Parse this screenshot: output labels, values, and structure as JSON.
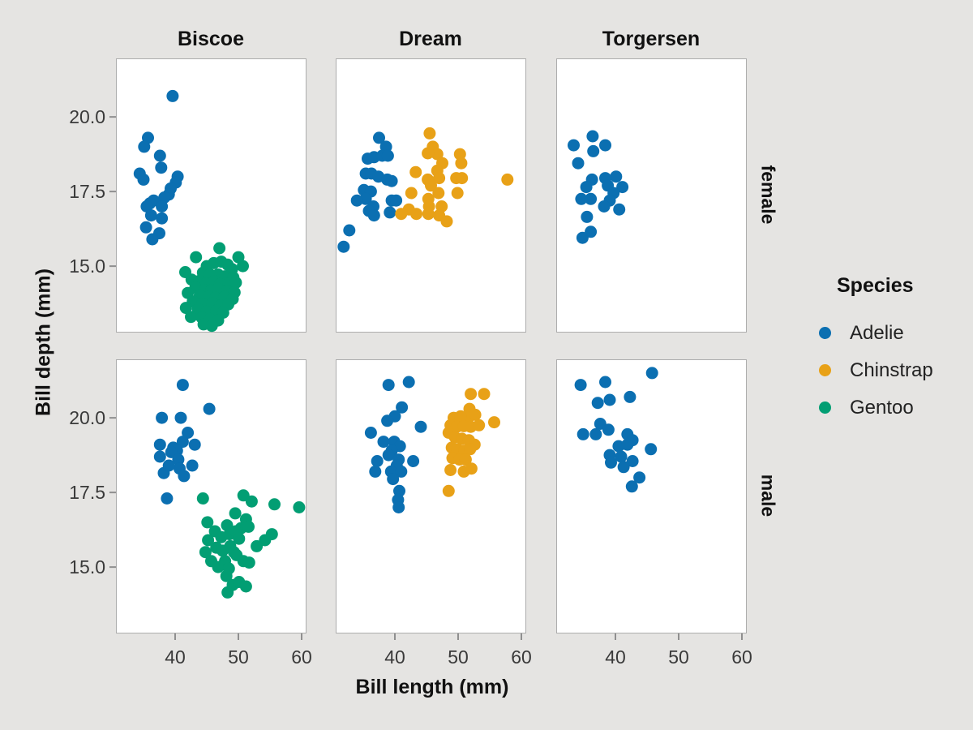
{
  "figure": {
    "kind": "faceted scatter plot",
    "background": "#e5e4e2",
    "panel_fill": "#ffffff",
    "panel_border": "#adadad",
    "tick_color": "#8f8f8f"
  },
  "axes": {
    "x_label": "Bill length (mm)",
    "y_label": "Bill depth (mm)",
    "x_ticks": [
      40,
      50,
      60
    ],
    "y_ticks": [
      20.0,
      17.5,
      15.0
    ],
    "y_tick_labels": [
      "20.0",
      "17.5",
      "15.0"
    ],
    "x_tick_labels": [
      "40",
      "50",
      "60"
    ],
    "xlim": [
      30.6,
      60.6
    ],
    "ylim": [
      12.8,
      21.96
    ]
  },
  "facets": {
    "cols": [
      "Biscoe",
      "Dream",
      "Torgersen"
    ],
    "rows": [
      "female",
      "male"
    ]
  },
  "legend": {
    "title": "Species",
    "items": [
      {
        "label": "Adelie",
        "color": "#0b6fb1"
      },
      {
        "label": "Chinstrap",
        "color": "#e8a117"
      },
      {
        "label": "Gentoo",
        "color": "#029e73"
      }
    ]
  },
  "chart_data": {
    "type": "scatter",
    "title": "",
    "xlabel": "Bill length (mm)",
    "ylabel": "Bill depth (mm)",
    "facet_col": "island",
    "facet_row": "sex",
    "grid": false,
    "legend_position": "right",
    "series": [
      {
        "island": "Biscoe",
        "sex": "female",
        "species": "Adelie",
        "points": [
          [
            39.6,
            20.7
          ],
          [
            35.7,
            19.3
          ],
          [
            35.1,
            19.0
          ],
          [
            37.6,
            18.7
          ],
          [
            37.8,
            18.3
          ],
          [
            34.4,
            18.1
          ],
          [
            40.4,
            18.0
          ],
          [
            35.0,
            17.9
          ],
          [
            40.1,
            17.8
          ],
          [
            39.3,
            17.6
          ],
          [
            39.0,
            17.4
          ],
          [
            38.3,
            17.3
          ],
          [
            36.6,
            17.2
          ],
          [
            36.0,
            17.1
          ],
          [
            35.5,
            17.0
          ],
          [
            37.9,
            17.0
          ],
          [
            36.2,
            16.7
          ],
          [
            37.9,
            16.6
          ],
          [
            35.4,
            16.3
          ],
          [
            37.5,
            16.1
          ],
          [
            36.4,
            15.9
          ]
        ]
      },
      {
        "island": "Biscoe",
        "sex": "female",
        "species": "Gentoo",
        "points": [
          [
            47.0,
            15.6
          ],
          [
            43.3,
            15.3
          ],
          [
            50.0,
            15.3
          ],
          [
            46.1,
            15.1
          ],
          [
            47.3,
            15.15
          ],
          [
            48.3,
            15.05
          ],
          [
            45.0,
            15.0
          ],
          [
            50.7,
            15.0
          ],
          [
            41.6,
            14.8
          ],
          [
            49.0,
            14.9
          ],
          [
            44.4,
            14.78
          ],
          [
            45.5,
            14.72
          ],
          [
            46.8,
            14.72
          ],
          [
            47.9,
            14.66
          ],
          [
            49.2,
            14.62
          ],
          [
            42.6,
            14.55
          ],
          [
            43.8,
            14.5
          ],
          [
            44.9,
            14.42
          ],
          [
            46.2,
            14.5
          ],
          [
            47.1,
            14.4
          ],
          [
            48.5,
            14.42
          ],
          [
            49.6,
            14.45
          ],
          [
            43.2,
            14.28
          ],
          [
            44.6,
            14.2
          ],
          [
            45.7,
            14.18
          ],
          [
            46.8,
            14.24
          ],
          [
            48.2,
            14.16
          ],
          [
            49.4,
            14.12
          ],
          [
            42.0,
            14.1
          ],
          [
            43.9,
            14.02
          ],
          [
            45.3,
            13.98
          ],
          [
            46.4,
            13.94
          ],
          [
            47.8,
            13.97
          ],
          [
            49.1,
            13.9
          ],
          [
            42.8,
            13.82
          ],
          [
            44.3,
            13.74
          ],
          [
            45.9,
            13.76
          ],
          [
            47.2,
            13.68
          ],
          [
            48.4,
            13.72
          ],
          [
            41.7,
            13.6
          ],
          [
            43.6,
            13.56
          ],
          [
            45.0,
            13.48
          ],
          [
            46.5,
            13.5
          ],
          [
            47.6,
            13.44
          ],
          [
            42.5,
            13.3
          ],
          [
            44.2,
            13.28
          ],
          [
            45.5,
            13.22
          ],
          [
            46.8,
            13.18
          ],
          [
            44.5,
            13.05
          ],
          [
            45.8,
            13.0
          ]
        ]
      },
      {
        "island": "Biscoe",
        "sex": "male",
        "species": "Adelie",
        "points": [
          [
            41.2,
            21.1
          ],
          [
            45.4,
            20.3
          ],
          [
            37.9,
            20.0
          ],
          [
            40.9,
            20.0
          ],
          [
            42.0,
            19.5
          ],
          [
            37.6,
            19.1
          ],
          [
            41.2,
            19.2
          ],
          [
            39.7,
            19.0
          ],
          [
            43.1,
            19.1
          ],
          [
            40.3,
            18.9
          ],
          [
            39.4,
            18.85
          ],
          [
            37.6,
            18.7
          ],
          [
            40.5,
            18.6
          ],
          [
            42.7,
            18.4
          ],
          [
            38.2,
            18.15
          ],
          [
            40.7,
            18.3
          ],
          [
            41.4,
            18.05
          ],
          [
            39.0,
            18.4
          ],
          [
            38.7,
            17.3
          ]
        ]
      },
      {
        "island": "Biscoe",
        "sex": "male",
        "species": "Gentoo",
        "points": [
          [
            44.4,
            17.3
          ],
          [
            50.8,
            17.4
          ],
          [
            52.1,
            17.2
          ],
          [
            55.7,
            17.1
          ],
          [
            59.6,
            17.0
          ],
          [
            49.5,
            16.8
          ],
          [
            51.2,
            16.6
          ],
          [
            45.1,
            16.5
          ],
          [
            48.2,
            16.4
          ],
          [
            50.4,
            16.3
          ],
          [
            51.6,
            16.35
          ],
          [
            55.3,
            16.1
          ],
          [
            54.2,
            15.9
          ],
          [
            46.3,
            16.2
          ],
          [
            47.3,
            16.0
          ],
          [
            48.6,
            16.1
          ],
          [
            49.6,
            16.2
          ],
          [
            50.1,
            15.95
          ],
          [
            45.2,
            15.9
          ],
          [
            52.9,
            15.7
          ],
          [
            48.7,
            15.7
          ],
          [
            46.5,
            15.65
          ],
          [
            47.5,
            15.55
          ],
          [
            49.3,
            15.5
          ],
          [
            44.8,
            15.5
          ],
          [
            45.7,
            15.2
          ],
          [
            47.9,
            15.2
          ],
          [
            49.7,
            15.4
          ],
          [
            50.8,
            15.2
          ],
          [
            51.7,
            15.15
          ],
          [
            46.8,
            15.0
          ],
          [
            48.5,
            14.95
          ],
          [
            48.1,
            14.7
          ],
          [
            49.1,
            14.4
          ],
          [
            50.1,
            14.5
          ],
          [
            51.2,
            14.35
          ],
          [
            48.3,
            14.15
          ]
        ]
      },
      {
        "island": "Dream",
        "sex": "female",
        "species": "Adelie",
        "points": [
          [
            37.5,
            19.3
          ],
          [
            38.6,
            19.0
          ],
          [
            35.7,
            18.6
          ],
          [
            36.7,
            18.65
          ],
          [
            38.0,
            18.7
          ],
          [
            38.9,
            18.7
          ],
          [
            35.4,
            18.1
          ],
          [
            36.3,
            18.1
          ],
          [
            37.4,
            18.0
          ],
          [
            38.8,
            17.9
          ],
          [
            39.5,
            17.85
          ],
          [
            35.1,
            17.55
          ],
          [
            36.2,
            17.5
          ],
          [
            35.4,
            17.25
          ],
          [
            34.0,
            17.2
          ],
          [
            39.5,
            17.2
          ],
          [
            40.2,
            17.2
          ],
          [
            36.6,
            17.0
          ],
          [
            39.2,
            16.8
          ],
          [
            35.9,
            16.85
          ],
          [
            36.7,
            16.7
          ],
          [
            32.8,
            16.2
          ],
          [
            31.9,
            15.65
          ]
        ]
      },
      {
        "island": "Dream",
        "sex": "female",
        "species": "Chinstrap",
        "points": [
          [
            45.5,
            19.45
          ],
          [
            46.0,
            19.0
          ],
          [
            46.7,
            18.75
          ],
          [
            45.2,
            18.78
          ],
          [
            47.5,
            18.45
          ],
          [
            50.3,
            18.75
          ],
          [
            50.5,
            18.45
          ],
          [
            43.3,
            18.15
          ],
          [
            46.7,
            18.2
          ],
          [
            47.0,
            17.95
          ],
          [
            45.2,
            17.9
          ],
          [
            49.7,
            17.95
          ],
          [
            50.6,
            17.95
          ],
          [
            57.8,
            17.9
          ],
          [
            45.7,
            17.7
          ],
          [
            42.6,
            17.45
          ],
          [
            45.3,
            17.25
          ],
          [
            46.9,
            17.45
          ],
          [
            49.9,
            17.45
          ],
          [
            45.4,
            17.0
          ],
          [
            47.4,
            17.0
          ],
          [
            42.2,
            16.9
          ],
          [
            41.0,
            16.75
          ],
          [
            43.4,
            16.75
          ],
          [
            45.3,
            16.75
          ],
          [
            47.0,
            16.7
          ],
          [
            48.2,
            16.5
          ]
        ]
      },
      {
        "island": "Dream",
        "sex": "male",
        "species": "Adelie",
        "points": [
          [
            39.0,
            21.1
          ],
          [
            42.2,
            21.2
          ],
          [
            41.1,
            20.35
          ],
          [
            40.0,
            20.05
          ],
          [
            38.8,
            19.9
          ],
          [
            44.1,
            19.7
          ],
          [
            36.2,
            19.5
          ],
          [
            38.2,
            19.2
          ],
          [
            39.9,
            19.2
          ],
          [
            40.8,
            19.05
          ],
          [
            39.5,
            18.9
          ],
          [
            39.0,
            18.75
          ],
          [
            40.6,
            18.6
          ],
          [
            37.2,
            18.55
          ],
          [
            42.9,
            18.55
          ],
          [
            40.3,
            18.4
          ],
          [
            36.9,
            18.2
          ],
          [
            39.4,
            18.2
          ],
          [
            41.0,
            18.2
          ],
          [
            39.7,
            17.95
          ],
          [
            40.7,
            17.55
          ],
          [
            40.5,
            17.25
          ],
          [
            40.6,
            17.0
          ]
        ]
      },
      {
        "island": "Dream",
        "sex": "male",
        "species": "Chinstrap",
        "points": [
          [
            52.0,
            20.8
          ],
          [
            54.1,
            20.8
          ],
          [
            51.8,
            20.3
          ],
          [
            51.6,
            20.0
          ],
          [
            49.3,
            20.0
          ],
          [
            50.4,
            20.05
          ],
          [
            52.7,
            20.1
          ],
          [
            55.7,
            19.85
          ],
          [
            48.8,
            19.75
          ],
          [
            49.8,
            19.7
          ],
          [
            50.9,
            19.72
          ],
          [
            52.0,
            19.7
          ],
          [
            53.3,
            19.75
          ],
          [
            48.5,
            19.5
          ],
          [
            49.5,
            19.35
          ],
          [
            50.6,
            19.3
          ],
          [
            51.7,
            19.25
          ],
          [
            52.6,
            19.1
          ],
          [
            49.0,
            19.0
          ],
          [
            49.9,
            18.95
          ],
          [
            51.0,
            18.9
          ],
          [
            51.9,
            18.95
          ],
          [
            49.1,
            18.65
          ],
          [
            50.2,
            18.6
          ],
          [
            51.2,
            18.6
          ],
          [
            48.8,
            18.25
          ],
          [
            50.9,
            18.2
          ],
          [
            52.1,
            18.3
          ],
          [
            48.5,
            17.55
          ]
        ]
      },
      {
        "island": "Torgersen",
        "sex": "female",
        "species": "Adelie",
        "points": [
          [
            36.4,
            19.35
          ],
          [
            33.4,
            19.05
          ],
          [
            38.4,
            19.05
          ],
          [
            36.5,
            18.85
          ],
          [
            34.1,
            18.45
          ],
          [
            40.1,
            18.0
          ],
          [
            36.3,
            17.9
          ],
          [
            38.4,
            17.95
          ],
          [
            38.8,
            17.7
          ],
          [
            35.4,
            17.65
          ],
          [
            41.1,
            17.65
          ],
          [
            34.6,
            17.25
          ],
          [
            36.1,
            17.25
          ],
          [
            39.7,
            17.45
          ],
          [
            39.1,
            17.2
          ],
          [
            38.2,
            17.0
          ],
          [
            40.6,
            16.9
          ],
          [
            35.5,
            16.65
          ],
          [
            36.1,
            16.15
          ],
          [
            34.8,
            15.95
          ]
        ]
      },
      {
        "island": "Torgersen",
        "sex": "male",
        "species": "Adelie",
        "points": [
          [
            45.8,
            21.5
          ],
          [
            34.5,
            21.1
          ],
          [
            38.4,
            21.2
          ],
          [
            37.2,
            20.5
          ],
          [
            39.1,
            20.6
          ],
          [
            42.3,
            20.7
          ],
          [
            37.6,
            19.8
          ],
          [
            38.9,
            19.6
          ],
          [
            34.9,
            19.45
          ],
          [
            36.9,
            19.45
          ],
          [
            41.9,
            19.45
          ],
          [
            42.7,
            19.25
          ],
          [
            40.5,
            19.05
          ],
          [
            41.9,
            19.1
          ],
          [
            45.6,
            18.95
          ],
          [
            39.1,
            18.75
          ],
          [
            40.9,
            18.7
          ],
          [
            42.7,
            18.55
          ],
          [
            39.3,
            18.5
          ],
          [
            41.3,
            18.35
          ],
          [
            43.8,
            18.0
          ],
          [
            42.6,
            17.7
          ]
        ]
      }
    ]
  }
}
